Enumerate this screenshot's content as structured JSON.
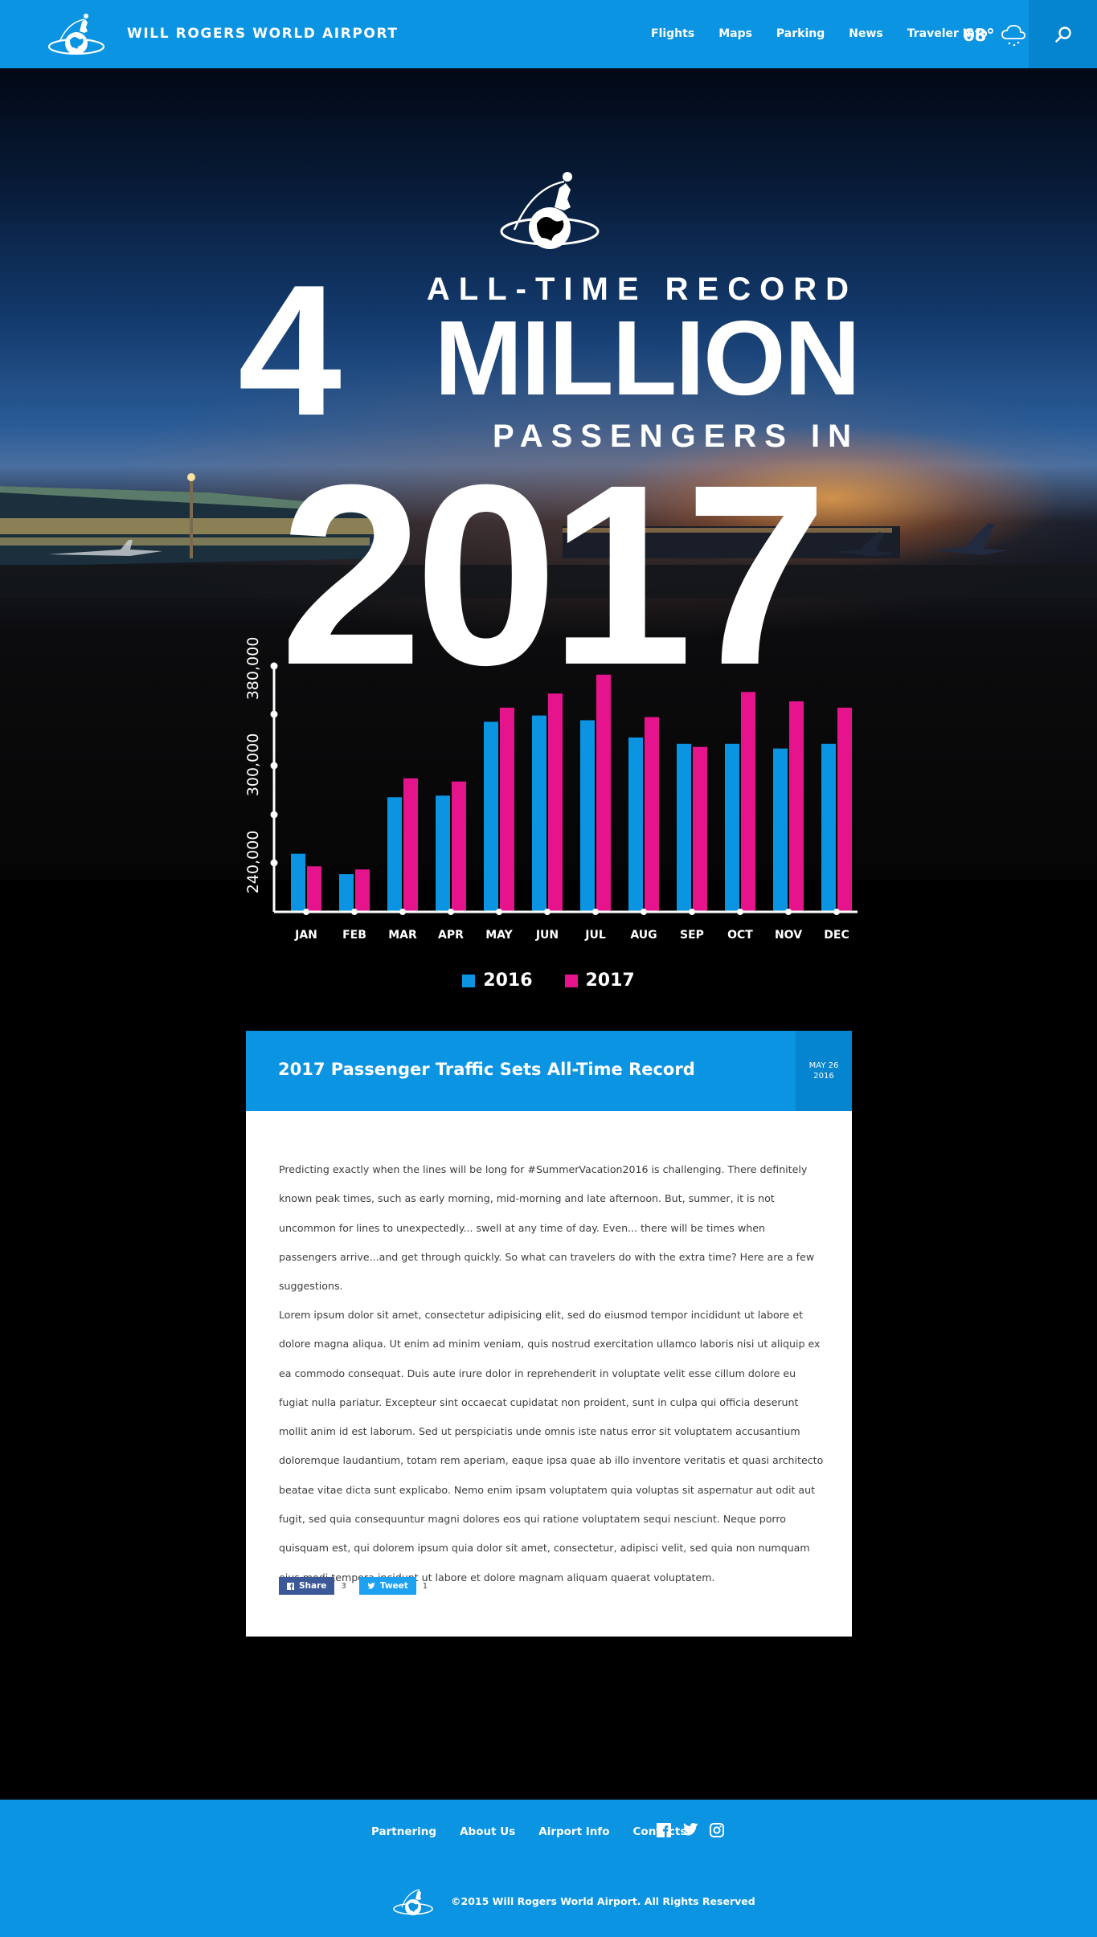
{
  "header": {
    "brand": "WILL ROGERS WORLD AIRPORT",
    "nav": [
      "Flights",
      "Maps",
      "Parking",
      "News",
      "Traveler Info"
    ],
    "temperature": "68°",
    "weather_icon": "cloud-snow-icon",
    "search_icon": "search-icon"
  },
  "hero": {
    "number": "4",
    "line1": "ALL-TIME RECORD",
    "line2": "MILLION",
    "line3": "PASSENGERS IN",
    "year": "2017"
  },
  "chart_data": {
    "type": "bar",
    "categories": [
      "JAN",
      "FEB",
      "MAR",
      "APR",
      "MAY",
      "JUN",
      "JUL",
      "AUG",
      "SEP",
      "OCT",
      "NOV",
      "DEC"
    ],
    "series": [
      {
        "name": "2016",
        "color": "#0a94e2",
        "values": [
          261000,
          248000,
          297000,
          298000,
          345000,
          349000,
          346000,
          335000,
          331000,
          331000,
          328000,
          331000
        ]
      },
      {
        "name": "2017",
        "color": "#e6148c",
        "values": [
          253000,
          251000,
          309000,
          307000,
          354000,
          363000,
          375000,
          348000,
          329000,
          364000,
          358000,
          354000
        ]
      }
    ],
    "yticks": [
      "240,000",
      "300,000",
      "380,000"
    ],
    "ylim": [
      224000,
      380000
    ],
    "grid": false,
    "legend": "bottom"
  },
  "article": {
    "title": "2017 Passenger Traffic Sets All-Time Record",
    "date_month_day": "MAY 26",
    "date_year": "2016",
    "paragraphs": [
      "Predicting exactly when the lines will be long for #SummerVacation2016 is challenging.  There definitely known peak times, such as early morning, mid-morning and late afternoon. But, summer, it is not uncommon for lines to unexpectedly... swell at any time of day.  Even... there will be times when passengers arrive...and get through quickly. So what can travelers do with the extra time? Here are a few suggestions.",
      "Lorem ipsum dolor sit amet, consectetur adipisicing elit, sed do eiusmod tempor incididunt ut labore et dolore magna aliqua. Ut enim ad minim veniam, quis nostrud exercitation ullamco laboris nisi ut aliquip ex ea commodo consequat. Duis aute irure dolor in reprehenderit in voluptate velit esse cillum dolore eu fugiat nulla pariatur. Excepteur sint occaecat cupidatat non proident, sunt in culpa qui officia deserunt mollit anim id est laborum. Sed ut perspiciatis unde omnis iste natus error sit voluptatem accusantium doloremque laudantium, totam rem aperiam, eaque ipsa quae ab illo inventore veritatis et quasi architecto beatae vitae dicta sunt explicabo. Nemo enim ipsam voluptatem quia voluptas sit aspernatur aut odit aut fugit, sed quia consequuntur magni dolores eos qui ratione voluptatem sequi nesciunt. Neque porro quisquam est, qui dolorem ipsum quia dolor sit amet, consectetur, adipisci velit, sed quia non numquam eius modi tempora incidunt ut labore et dolore magnam aliquam quaerat voluptatem."
    ],
    "share": {
      "facebook_label": "Share",
      "facebook_count": "3",
      "twitter_label": "Tweet",
      "twitter_count": "1"
    }
  },
  "footer": {
    "links": [
      "Partnering",
      "About Us",
      "Airport Info",
      "Contacts"
    ],
    "social_icons": [
      "facebook-icon",
      "twitter-icon",
      "instagram-icon"
    ],
    "copyright": "©2015 Will Rogers World Airport. All Rights Reserved"
  }
}
